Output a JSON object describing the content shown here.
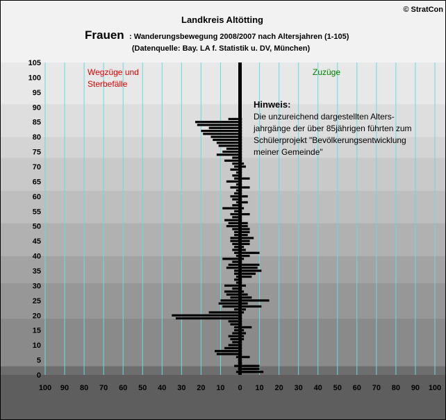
{
  "copyright": "© StratCon",
  "chart_data": {
    "type": "bar",
    "orientation": "horizontal",
    "title": "Landkreis Altötting",
    "subtitle_big": "Frauen",
    "subtitle_rest": ": Wanderungsbewegung 2008/2007 nach Altersjahren (1-105)",
    "source": "(Datenquelle: Bay. LA f. Statistik u. DV, München)",
    "label_left": [
      "Wegzüge und",
      "Sterbefälle"
    ],
    "label_right": "Zuzüge",
    "note_title": "Hinweis:",
    "note_lines": [
      "Die unzureichend dargestellten Alters-",
      "jahrgänge der über 85jährigen führten zum",
      "Schülerprojekt \"Bevölkerungsentwicklung",
      "meiner Gemeinde\""
    ],
    "x_ticks": [
      "100",
      "90",
      "80",
      "70",
      "60",
      "50",
      "40",
      "30",
      "20",
      "10",
      "0",
      "10",
      "20",
      "30",
      "40",
      "50",
      "60",
      "70",
      "80",
      "90",
      "100"
    ],
    "y_ticks": [
      "0",
      "5",
      "10",
      "15",
      "20",
      "25",
      "30",
      "35",
      "40",
      "45",
      "50",
      "55",
      "60",
      "65",
      "70",
      "75",
      "80",
      "85",
      "90",
      "95",
      "100",
      "105"
    ],
    "xlim": [
      -100,
      100
    ],
    "ylim": [
      0,
      105
    ],
    "grid": true,
    "colors": {
      "bars": "#000000",
      "grid": "#66dddd",
      "left_label": "#dd0000",
      "right_label": "#008000"
    },
    "ages": [
      1,
      2,
      3,
      4,
      5,
      6,
      7,
      8,
      9,
      10,
      11,
      12,
      13,
      14,
      15,
      16,
      17,
      18,
      19,
      20,
      21,
      22,
      23,
      24,
      25,
      26,
      27,
      28,
      29,
      30,
      31,
      32,
      33,
      34,
      35,
      36,
      37,
      38,
      39,
      40,
      41,
      42,
      43,
      44,
      45,
      46,
      47,
      48,
      49,
      50,
      51,
      52,
      53,
      54,
      55,
      56,
      57,
      58,
      59,
      60,
      61,
      62,
      63,
      64,
      65,
      66,
      67,
      68,
      69,
      70,
      71,
      72,
      73,
      74,
      75,
      76,
      77,
      78,
      79,
      80,
      81,
      82,
      83,
      84,
      85,
      86
    ],
    "series": [
      {
        "name": "Wegzüge und Sterbefälle",
        "values": [
          -2,
          -1,
          -3,
          -1,
          -1,
          -2,
          -12,
          -13,
          -8,
          -6,
          -4,
          -5,
          -6,
          -4,
          -3,
          -3,
          -5,
          -6,
          -33,
          -35,
          -16,
          -3,
          -9,
          -11,
          -10,
          -5,
          -7,
          -8,
          -4,
          -8,
          -2,
          -3,
          -2,
          -3,
          -3,
          -7,
          -6,
          -4,
          -9,
          -2,
          -3,
          -4,
          -3,
          -4,
          -5,
          -5,
          -3,
          -3,
          -4,
          -7,
          -6,
          -8,
          -4,
          -5,
          -3,
          -9,
          -4,
          -2,
          -4,
          -5,
          -3,
          -2,
          -5,
          -2,
          -7,
          -3,
          -4,
          -2,
          -5,
          -3,
          -4,
          -8,
          -4,
          -12,
          -9,
          -7,
          -11,
          -12,
          -14,
          -15,
          -19,
          -20,
          -16,
          -22,
          -23,
          -6
        ]
      },
      {
        "name": "Zuzüge",
        "values": [
          12,
          10,
          10,
          1,
          1,
          5,
          1,
          1,
          1,
          1,
          1,
          2,
          2,
          3,
          2,
          6,
          1,
          1,
          1,
          1,
          2,
          3,
          11,
          4,
          15,
          6,
          4,
          2,
          1,
          3,
          1,
          1,
          6,
          8,
          11,
          9,
          10,
          1,
          2,
          5,
          10,
          3,
          2,
          5,
          5,
          7,
          4,
          5,
          5,
          4,
          4,
          1,
          1,
          5,
          1,
          2,
          1,
          4,
          1,
          4,
          1,
          1,
          5,
          1,
          1,
          5,
          1,
          1,
          1,
          3,
          2,
          1,
          1,
          1,
          1,
          1,
          1,
          1,
          1,
          1,
          1,
          1,
          1,
          1,
          1,
          1
        ]
      }
    ]
  }
}
